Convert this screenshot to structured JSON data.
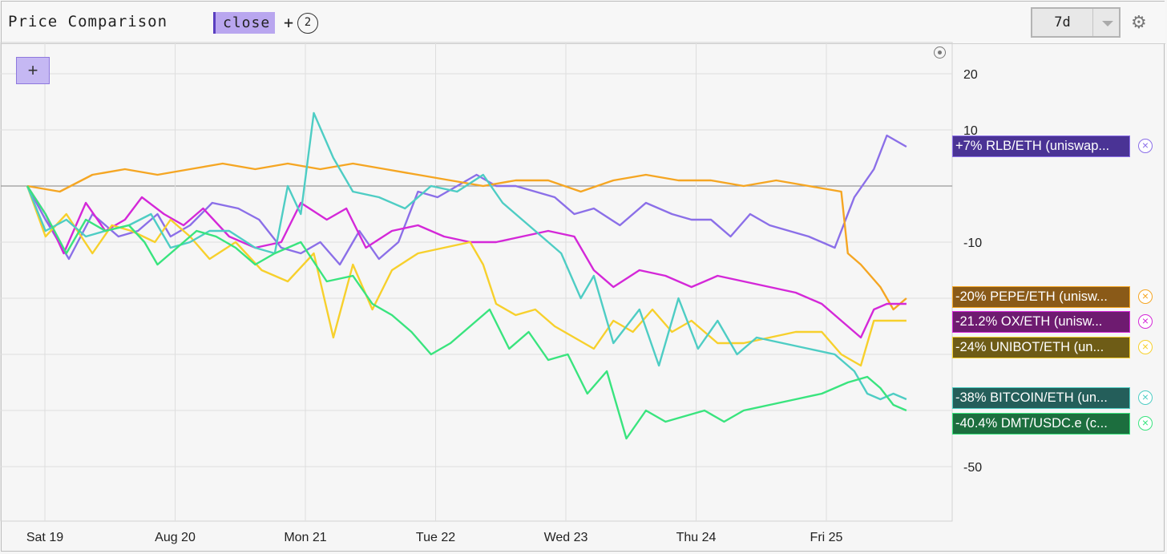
{
  "header": {
    "title": "Price Comparison",
    "metric": "close",
    "plus": "+",
    "extra_count": "2",
    "range": "7d",
    "settings_icon": "gear-icon"
  },
  "chart_data": {
    "type": "line",
    "x_ticks": [
      "Sat 19",
      "Aug 20",
      "Mon 21",
      "Tue 22",
      "Wed 23",
      "Thu 24",
      "Fri 25"
    ],
    "y_ticks": [
      20,
      10,
      -10,
      -50
    ],
    "ylim": [
      -60,
      25
    ],
    "grid": true,
    "legend_placement": "right",
    "series": [
      {
        "name": "RLB/ETH (uniswap...",
        "label": "+7% RLB/ETH (uniswap...",
        "color": "#8b6fe8",
        "label_bg": "#4a3395",
        "x": [
          0,
          0.14,
          0.32,
          0.5,
          0.7,
          0.85,
          1,
          1.1,
          1.25,
          1.42,
          1.62,
          1.78,
          1.95,
          2.1,
          2.25,
          2.4,
          2.55,
          2.7,
          2.85,
          3,
          3.15,
          3.3,
          3.45,
          3.6,
          3.75,
          3.9,
          4.05,
          4.2,
          4.35,
          4.55,
          4.75,
          4.95,
          5.1,
          5.25,
          5.4,
          5.55,
          5.7,
          5.85,
          6,
          6.1,
          6.2,
          6.35,
          6.5,
          6.6,
          6.75
        ],
        "y": [
          0,
          -6,
          -13,
          -5,
          -9,
          -8,
          -5,
          -9,
          -7,
          -3,
          -4,
          -6,
          -11,
          -12,
          -10,
          -14,
          -8,
          -13,
          -10,
          -1,
          -2,
          0,
          2,
          0,
          0,
          -1,
          -2,
          -5,
          -4,
          -7,
          -3,
          -5,
          -6,
          -6,
          -9,
          -5,
          -7,
          -8,
          -9,
          -10,
          -11,
          -2,
          3,
          9,
          7
        ]
      },
      {
        "name": "PEPE/ETH (unisw...",
        "label": "-20% PEPE/ETH (unisw...",
        "color": "#f5a623",
        "label_bg": "#8a5a18",
        "x": [
          0,
          0.25,
          0.5,
          0.75,
          1,
          1.25,
          1.5,
          1.75,
          2,
          2.25,
          2.5,
          2.75,
          3,
          3.25,
          3.5,
          3.75,
          4,
          4.25,
          4.5,
          4.75,
          5,
          5.25,
          5.5,
          5.75,
          6,
          6.25,
          6.3,
          6.4,
          6.55,
          6.65,
          6.75
        ],
        "y": [
          0,
          -1,
          2,
          3,
          2,
          3,
          4,
          3,
          4,
          3,
          4,
          3,
          2,
          1,
          0,
          1,
          1,
          -1,
          1,
          2,
          1,
          1,
          0,
          1,
          0,
          -1,
          -12,
          -14,
          -18,
          -22,
          -20
        ]
      },
      {
        "name": "OX/ETH (unisw...",
        "label": "-21.2% OX/ETH (unisw...",
        "color": "#d428d8",
        "label_bg": "#6e1b70",
        "x": [
          0,
          0.14,
          0.28,
          0.45,
          0.6,
          0.75,
          0.88,
          1.05,
          1.2,
          1.35,
          1.55,
          1.75,
          1.95,
          2.1,
          2.3,
          2.45,
          2.6,
          2.8,
          3,
          3.2,
          3.4,
          3.6,
          3.8,
          4,
          4.2,
          4.35,
          4.5,
          4.7,
          4.9,
          5.1,
          5.3,
          5.5,
          5.7,
          5.9,
          6.1,
          6.25,
          6.4,
          6.5,
          6.6,
          6.75
        ],
        "y": [
          0,
          -5,
          -12,
          -3,
          -8,
          -6,
          -2,
          -5,
          -7,
          -4,
          -9,
          -11,
          -10,
          -3,
          -6,
          -4,
          -11,
          -8,
          -7,
          -9,
          -10,
          -10,
          -9,
          -8,
          -9,
          -15,
          -18,
          -15,
          -16,
          -18,
          -16,
          -17,
          -18,
          -19,
          -21,
          -24,
          -27,
          -22,
          -21,
          -21
        ]
      },
      {
        "name": "UNIBOT/ETH (un...",
        "label": "-24% UNIBOT/ETH (un...",
        "color": "#f7d02c",
        "label_bg": "#6e5c16",
        "x": [
          0,
          0.14,
          0.3,
          0.5,
          0.65,
          0.8,
          0.98,
          1.1,
          1.25,
          1.4,
          1.6,
          1.8,
          2,
          2.2,
          2.35,
          2.5,
          2.65,
          2.8,
          3,
          3.2,
          3.4,
          3.5,
          3.6,
          3.75,
          3.9,
          4.05,
          4.2,
          4.35,
          4.5,
          4.65,
          4.8,
          4.95,
          5.1,
          5.3,
          5.5,
          5.7,
          5.9,
          6.1,
          6.25,
          6.4,
          6.5,
          6.6,
          6.75
        ],
        "y": [
          0,
          -9,
          -5,
          -12,
          -7,
          -8,
          -10,
          -6,
          -9,
          -13,
          -10,
          -15,
          -17,
          -12,
          -27,
          -14,
          -22,
          -15,
          -12,
          -11,
          -10,
          -14,
          -21,
          -23,
          -22,
          -25,
          -27,
          -29,
          -24,
          -26,
          -22,
          -26,
          -24,
          -28,
          -28,
          -27,
          -26,
          -26,
          -30,
          -32,
          -24,
          -24,
          -24
        ]
      },
      {
        "name": "BITCOIN/ETH (un...",
        "label": "-38% BITCOIN/ETH (un...",
        "color": "#4ecdc4",
        "label_bg": "#245e5a",
        "x": [
          0,
          0.14,
          0.3,
          0.45,
          0.6,
          0.78,
          0.95,
          1.1,
          1.25,
          1.4,
          1.55,
          1.75,
          1.9,
          2,
          2.1,
          2.2,
          2.35,
          2.5,
          2.7,
          2.9,
          3.1,
          3.3,
          3.5,
          3.65,
          3.8,
          4,
          4.1,
          4.25,
          4.35,
          4.5,
          4.7,
          4.85,
          5,
          5.15,
          5.3,
          5.45,
          5.6,
          5.8,
          6,
          6.2,
          6.35,
          6.45,
          6.55,
          6.65,
          6.75
        ],
        "y": [
          0,
          -8,
          -6,
          -9,
          -8,
          -7,
          -5,
          -11,
          -10,
          -8,
          -8,
          -11,
          -12,
          0,
          -5,
          13,
          5,
          -1,
          -2,
          -4,
          0,
          -1,
          2,
          -3,
          -6,
          -10,
          -12,
          -20,
          -16,
          -28,
          -22,
          -32,
          -20,
          -29,
          -24,
          -30,
          -27,
          -28,
          -29,
          -30,
          -33,
          -37,
          -38,
          -37,
          -38
        ]
      },
      {
        "name": "DMT/USDC.e (c...",
        "label": "-40.4% DMT/USDC.e (c...",
        "color": "#39e47e",
        "label_bg": "#1c6e3e",
        "x": [
          0,
          0.14,
          0.3,
          0.45,
          0.6,
          0.78,
          0.9,
          1,
          1.15,
          1.3,
          1.45,
          1.6,
          1.75,
          1.9,
          2.1,
          2.3,
          2.5,
          2.65,
          2.8,
          2.95,
          3.1,
          3.25,
          3.4,
          3.55,
          3.7,
          3.85,
          4,
          4.15,
          4.3,
          4.45,
          4.6,
          4.75,
          4.9,
          5.05,
          5.2,
          5.35,
          5.5,
          5.7,
          5.9,
          6.1,
          6.3,
          6.45,
          6.55,
          6.65,
          6.75
        ],
        "y": [
          0,
          -5,
          -12,
          -6,
          -8,
          -7,
          -10,
          -14,
          -11,
          -8,
          -9,
          -11,
          -14,
          -12,
          -10,
          -17,
          -16,
          -21,
          -23,
          -26,
          -30,
          -28,
          -25,
          -22,
          -29,
          -26,
          -31,
          -30,
          -37,
          -33,
          -45,
          -40,
          -42,
          -41,
          -40,
          -42,
          -40,
          -39,
          -38,
          -37,
          -35,
          -34,
          -36,
          -39,
          -40
        ]
      }
    ]
  }
}
